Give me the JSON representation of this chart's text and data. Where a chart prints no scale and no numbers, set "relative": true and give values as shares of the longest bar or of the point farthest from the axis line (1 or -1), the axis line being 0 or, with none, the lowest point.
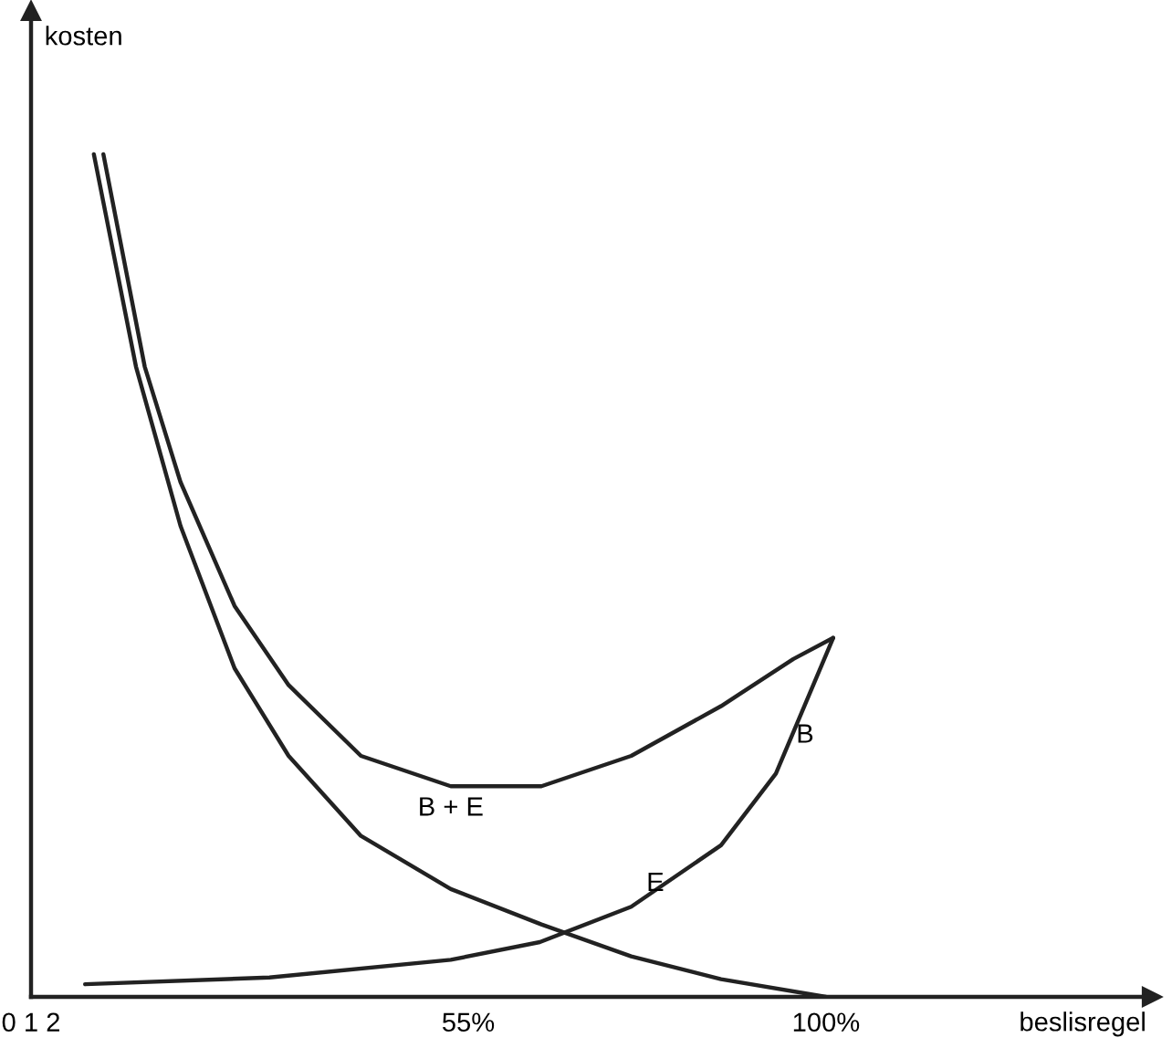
{
  "chart_data": {
    "type": "line",
    "relative": true,
    "xlabel": "beslisregel",
    "ylabel": "kosten",
    "xlim": [
      0,
      141
    ],
    "xticks": [
      {
        "value": 0,
        "label": "0 1 2"
      },
      {
        "value": 55,
        "label": "55%"
      },
      {
        "value": 100,
        "label": "100%"
      }
    ],
    "series": [
      {
        "color": "#222222",
        "x": [
          7.9,
          13.2,
          18.8,
          25.6,
          32.4,
          41.5,
          52.8,
          64.2,
          75.5,
          86.8,
          100
        ],
        "values": [
          1.0,
          0.748,
          0.559,
          0.39,
          0.286,
          0.191,
          0.128,
          0.086,
          0.048,
          0.021,
          0
        ]
      },
      {
        "color": "#222222",
        "x": [
          6.8,
          30,
          52.8,
          64,
          75.5,
          86.8,
          93.7,
          100.9
        ],
        "values": [
          0.015,
          0.023,
          0.044,
          0.065,
          0.107,
          0.18,
          0.265,
          0.426
        ]
      },
      {
        "color": "#222222",
        "x": [
          9.1,
          14.3,
          18.8,
          25.6,
          32.4,
          41.5,
          52.8,
          64.2,
          75.5,
          86.8,
          95.9,
          100.9
        ],
        "values": [
          1.0,
          0.748,
          0.611,
          0.464,
          0.37,
          0.286,
          0.25,
          0.25,
          0.286,
          0.345,
          0.401,
          0.426
        ]
      }
    ],
    "annotations": [
      {
        "text": "B + E",
        "x": 52.8,
        "y": 0.25
      },
      {
        "text": "E",
        "x": 75.5,
        "y": 0.107
      },
      {
        "text": "B",
        "x": 93.7,
        "y": 0.265
      }
    ],
    "grid": false,
    "legend": false,
    "marker": "none",
    "line_style": "solid"
  }
}
